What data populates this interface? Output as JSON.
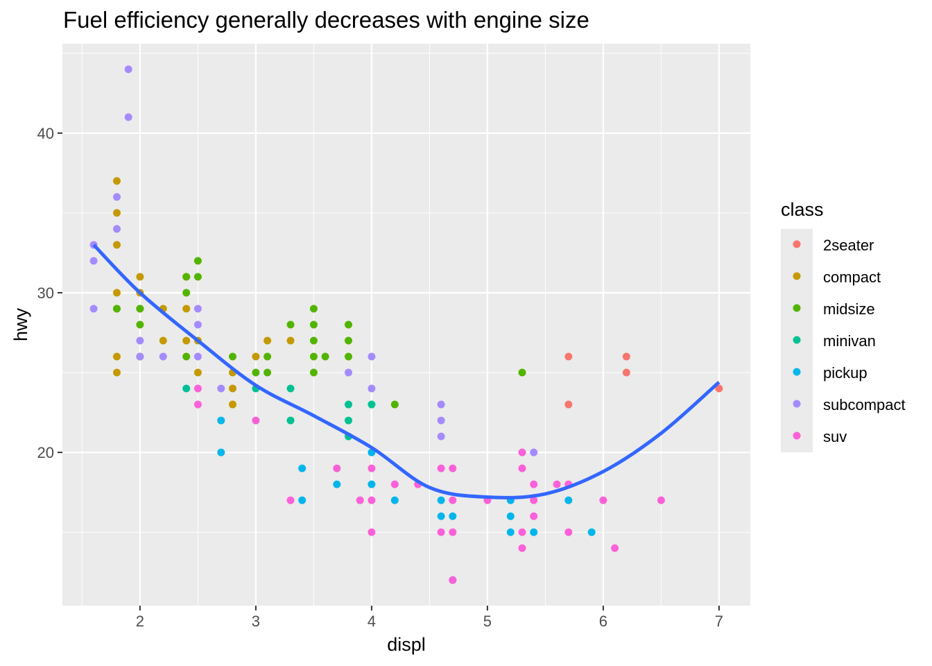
{
  "chart_data": {
    "type": "scatter",
    "title": "Fuel efficiency generally decreases with engine size",
    "xlabel": "displ",
    "ylabel": "hwy",
    "xlim": [
      1.33,
      7.27
    ],
    "ylim": [
      10.4,
      45.6
    ],
    "x_ticks": [
      2,
      3,
      4,
      5,
      6,
      7
    ],
    "y_ticks": [
      20,
      30,
      40
    ],
    "grid": true,
    "legend": {
      "title": "class",
      "placement": "right",
      "entries": [
        {
          "name": "2seater",
          "color": "#F8766D"
        },
        {
          "name": "compact",
          "color": "#C49A00"
        },
        {
          "name": "midsize",
          "color": "#53B400"
        },
        {
          "name": "minivan",
          "color": "#00C094"
        },
        {
          "name": "pickup",
          "color": "#00B6EB"
        },
        {
          "name": "subcompact",
          "color": "#A58AFF"
        },
        {
          "name": "suv",
          "color": "#FB61D7"
        }
      ]
    },
    "series": [
      {
        "name": "compact",
        "points": [
          [
            1.8,
            37
          ],
          [
            1.8,
            35
          ],
          [
            1.8,
            33
          ],
          [
            1.8,
            30
          ],
          [
            1.8,
            29
          ],
          [
            1.8,
            26
          ],
          [
            1.8,
            25
          ],
          [
            2,
            31
          ],
          [
            2,
            30
          ],
          [
            2,
            29
          ],
          [
            2.2,
            29
          ],
          [
            2.2,
            27
          ],
          [
            2.4,
            31
          ],
          [
            2.4,
            29
          ],
          [
            2.4,
            27
          ],
          [
            2.5,
            27
          ],
          [
            2.5,
            25
          ],
          [
            2.8,
            25
          ],
          [
            2.8,
            24
          ],
          [
            2.8,
            23
          ],
          [
            3,
            26
          ],
          [
            3.1,
            27
          ],
          [
            3.3,
            27
          ]
        ]
      },
      {
        "name": "midsize",
        "points": [
          [
            1.8,
            29
          ],
          [
            2,
            29
          ],
          [
            2,
            28
          ],
          [
            2,
            26
          ],
          [
            2.4,
            31
          ],
          [
            2.4,
            30
          ],
          [
            2.4,
            26
          ],
          [
            2.5,
            32
          ],
          [
            2.5,
            31
          ],
          [
            2.8,
            26
          ],
          [
            3,
            25
          ],
          [
            3.1,
            26
          ],
          [
            3.1,
            25
          ],
          [
            3.3,
            28
          ],
          [
            3.5,
            29
          ],
          [
            3.5,
            28
          ],
          [
            3.5,
            27
          ],
          [
            3.5,
            26
          ],
          [
            3.5,
            25
          ],
          [
            3.6,
            26
          ],
          [
            3.8,
            28
          ],
          [
            3.8,
            27
          ],
          [
            3.8,
            26
          ],
          [
            4.2,
            23
          ],
          [
            5.3,
            25
          ]
        ]
      },
      {
        "name": "minivan",
        "points": [
          [
            2.4,
            24
          ],
          [
            3,
            24
          ],
          [
            3.3,
            24
          ],
          [
            3.3,
            22
          ],
          [
            3.8,
            23
          ],
          [
            3.8,
            22
          ],
          [
            3.8,
            21
          ],
          [
            4,
            23
          ]
        ]
      },
      {
        "name": "subcompact",
        "points": [
          [
            1.6,
            33
          ],
          [
            1.6,
            32
          ],
          [
            1.6,
            29
          ],
          [
            1.9,
            44
          ],
          [
            1.9,
            41
          ],
          [
            1.8,
            36
          ],
          [
            1.8,
            34
          ],
          [
            2,
            27
          ],
          [
            2,
            26
          ],
          [
            2.2,
            26
          ],
          [
            2.5,
            29
          ],
          [
            2.5,
            28
          ],
          [
            2.5,
            26
          ],
          [
            2.7,
            24
          ],
          [
            3.8,
            25
          ],
          [
            3.9,
            17
          ],
          [
            4,
            26
          ],
          [
            4,
            24
          ],
          [
            4.6,
            23
          ],
          [
            4.6,
            22
          ],
          [
            4.6,
            21
          ],
          [
            5.4,
            20
          ]
        ]
      },
      {
        "name": "pickup",
        "points": [
          [
            2.7,
            22
          ],
          [
            2.7,
            20
          ],
          [
            3.4,
            19
          ],
          [
            3.4,
            17
          ],
          [
            3.7,
            18
          ],
          [
            4,
            20
          ],
          [
            4,
            18
          ],
          [
            4.2,
            17
          ],
          [
            4.6,
            17
          ],
          [
            4.6,
            16
          ],
          [
            4.7,
            16
          ],
          [
            4.7,
            12
          ],
          [
            5.2,
            17
          ],
          [
            5.2,
            16
          ],
          [
            5.2,
            15
          ],
          [
            5.4,
            15
          ],
          [
            5.7,
            17
          ],
          [
            5.9,
            15
          ]
        ]
      },
      {
        "name": "suv",
        "points": [
          [
            2.5,
            24
          ],
          [
            2.5,
            23
          ],
          [
            3,
            22
          ],
          [
            3.3,
            17
          ],
          [
            3.7,
            19
          ],
          [
            3.9,
            17
          ],
          [
            4,
            19
          ],
          [
            4,
            17
          ],
          [
            4,
            15
          ],
          [
            4.2,
            18
          ],
          [
            4.4,
            18
          ],
          [
            4.6,
            19
          ],
          [
            4.6,
            15
          ],
          [
            4.7,
            19
          ],
          [
            4.7,
            17
          ],
          [
            4.7,
            15
          ],
          [
            4.7,
            12
          ],
          [
            5,
            17
          ],
          [
            5.3,
            20
          ],
          [
            5.3,
            19
          ],
          [
            5.3,
            15
          ],
          [
            5.3,
            14
          ],
          [
            5.4,
            18
          ],
          [
            5.4,
            17
          ],
          [
            5.4,
            16
          ],
          [
            5.6,
            18
          ],
          [
            5.7,
            18
          ],
          [
            5.7,
            15
          ],
          [
            6,
            17
          ],
          [
            6.1,
            14
          ],
          [
            6.5,
            17
          ]
        ]
      },
      {
        "name": "2seater",
        "points": [
          [
            5.7,
            26
          ],
          [
            5.7,
            23
          ],
          [
            6.2,
            26
          ],
          [
            6.2,
            25
          ],
          [
            7,
            24
          ]
        ]
      }
    ],
    "smooth": {
      "color": "#3366FF",
      "points": [
        [
          1.6,
          33
        ],
        [
          2,
          30
        ],
        [
          2.5,
          27
        ],
        [
          3,
          24.2
        ],
        [
          3.5,
          22.3
        ],
        [
          4,
          20.3
        ],
        [
          4.5,
          17.8
        ],
        [
          5,
          17.2
        ],
        [
          5.5,
          17.4
        ],
        [
          6,
          18.8
        ],
        [
          6.5,
          21.2
        ],
        [
          7,
          24.4
        ]
      ]
    }
  }
}
